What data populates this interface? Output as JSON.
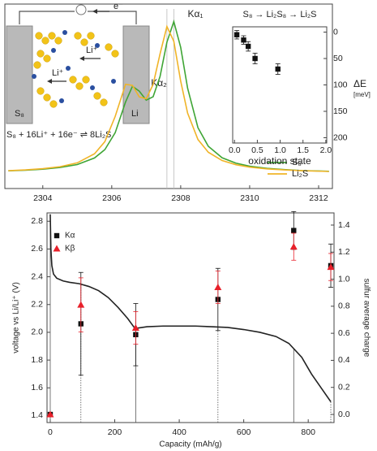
{
  "diagram": {
    "electron": "e⁻",
    "ions": [
      "Li⁺",
      "Li⁺"
    ],
    "cathode": "S₈",
    "anode": "Li",
    "equation": "S₈ + 16Li⁺ + 16e⁻ ⇌ 8Li₂S"
  },
  "chart_data": [
    {
      "type": "line",
      "x": [
        2303,
        2303.5,
        2304,
        2304.5,
        2305,
        2305.5,
        2305.8,
        2306.1,
        2306.4,
        2306.6,
        2306.8,
        2307.0,
        2307.2,
        2307.4,
        2307.6,
        2307.8,
        2308.0,
        2308.2,
        2308.5,
        2308.8,
        2309.2,
        2309.6,
        2310,
        2310.5,
        2311,
        2311.5,
        2312,
        2312.3
      ],
      "series": [
        {
          "name": "S₈",
          "color": "#3fa535",
          "values": [
            0.015,
            0.019,
            0.026,
            0.037,
            0.056,
            0.099,
            0.153,
            0.263,
            0.463,
            0.565,
            0.533,
            0.475,
            0.497,
            0.628,
            0.852,
            0.986,
            0.818,
            0.553,
            0.296,
            0.175,
            0.1,
            0.065,
            0.045,
            0.031,
            0.023,
            0.017,
            0.014,
            0.012
          ]
        },
        {
          "name": "Li₂S",
          "color": "#f0b428",
          "values": [
            0.016,
            0.021,
            0.029,
            0.042,
            0.067,
            0.126,
            0.205,
            0.369,
            0.578,
            0.571,
            0.496,
            0.484,
            0.577,
            0.775,
            0.954,
            0.858,
            0.598,
            0.391,
            0.219,
            0.136,
            0.082,
            0.055,
            0.039,
            0.028,
            0.021,
            0.016,
            0.013,
            0.011
          ]
        }
      ],
      "xlim": [
        2302.9,
        2312.4
      ],
      "xticks": [
        2304,
        2306,
        2308,
        2310,
        2312
      ],
      "ylim": [
        -0.1,
        1.1
      ],
      "annotations": [
        "Kα₂",
        "Kα₁"
      ],
      "legend": "lower right"
    },
    {
      "type": "scatter",
      "title": "S₈ → Li₂S₈ → Li₂S",
      "xlabel": "oxidation state",
      "ylabel": "ΔE",
      "ylabel_unit": "[meV]",
      "x": [
        0.05,
        0.2,
        0.3,
        0.45,
        0.95
      ],
      "series": [
        {
          "color": "#111111",
          "marker": "square",
          "values": [
            5,
            15,
            27,
            50,
            70
          ],
          "errors": [
            8,
            8,
            9,
            10,
            10
          ]
        }
      ],
      "xlim": [
        -0.04,
        2.02
      ],
      "xticks": [
        {
          "value": 0,
          "label": "0.0"
        },
        {
          "value": 0.5,
          "label": "0.5"
        },
        {
          "value": 1,
          "label": "1.0"
        },
        {
          "value": 1.5,
          "label": "1.5"
        },
        {
          "value": 2,
          "label": "2.0"
        }
      ],
      "ylim": [
        210,
        -10
      ],
      "yticks": [
        0,
        50,
        100,
        150,
        200
      ]
    },
    {
      "type": "line",
      "xlabel": "Capacity (mAh/g)",
      "ylabel": "voltage vs Li/Li⁺ (V)",
      "y2label": "sulfur average charge",
      "series": [
        {
          "type": "line",
          "color": "#222222",
          "x": [
            0,
            2,
            5,
            10,
            20,
            40,
            60,
            90,
            120,
            150,
            180,
            210,
            240,
            262,
            270,
            300,
            350,
            400,
            450,
            500,
            550,
            600,
            650,
            700,
            740,
            780,
            810,
            840,
            870
          ],
          "values": [
            2.85,
            2.6,
            2.48,
            2.42,
            2.39,
            2.37,
            2.36,
            2.35,
            2.33,
            2.3,
            2.25,
            2.18,
            2.1,
            2.03,
            2.03,
            2.04,
            2.045,
            2.045,
            2.045,
            2.04,
            2.035,
            2.02,
            2.0,
            1.97,
            1.92,
            1.82,
            1.7,
            1.6,
            1.5
          ]
        },
        {
          "name": "Kα",
          "type": "scatter",
          "marker": "square",
          "color": "#111111",
          "axis": "y2",
          "x": [
            0,
            95,
            265,
            520,
            755,
            870
          ],
          "values": [
            0.0,
            0.67,
            0.59,
            0.85,
            1.36,
            1.1
          ],
          "errors": [
            0,
            0.38,
            0.23,
            0.23,
            0.14,
            0.16
          ]
        },
        {
          "name": "Kβ",
          "type": "scatter",
          "marker": "triangle",
          "color": "#e8202a",
          "axis": "y2",
          "x": [
            0,
            95,
            265,
            520,
            755,
            870
          ],
          "values": [
            0.0,
            0.81,
            0.64,
            0.94,
            1.24,
            1.09
          ],
          "errors": [
            0,
            0.2,
            0.12,
            0.12,
            0.1,
            0.1
          ]
        }
      ],
      "xlim": [
        -10,
        880
      ],
      "xticks": [
        0,
        200,
        400,
        600,
        800
      ],
      "ylim": [
        1.35,
        2.86
      ],
      "yticks": [
        1.4,
        1.6,
        1.8,
        {
          "value": 2,
          "label": "2.0"
        },
        2.2,
        2.4,
        2.6,
        2.8
      ],
      "y2lim": [
        -0.06,
        1.49
      ],
      "y2ticks": [
        {
          "value": 0,
          "label": "0.0"
        },
        0.2,
        0.4,
        0.6,
        0.8,
        {
          "value": 1,
          "label": "1.0"
        },
        1.2,
        1.4
      ],
      "legend": "upper left"
    }
  ]
}
